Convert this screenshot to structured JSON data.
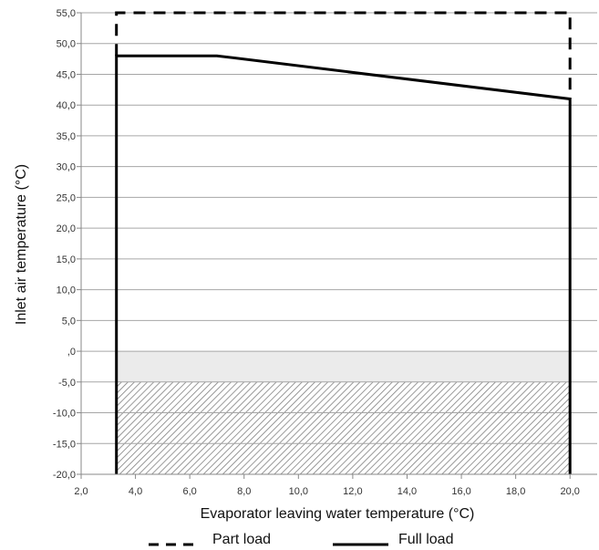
{
  "chart_data": {
    "type": "line",
    "title": "",
    "xlabel": "Evaporator leaving water temperature (°C)",
    "ylabel": "Inlet air temperature (°C)",
    "xlim": [
      2,
      21
    ],
    "ylim": [
      -20,
      55
    ],
    "grid": true,
    "x_ticks": [
      "2,0",
      "4,0",
      "6,0",
      "8,0",
      "10,0",
      "12,0",
      "14,0",
      "16,0",
      "18,0",
      "20,0"
    ],
    "y_ticks": [
      "-20,0",
      "-15,0",
      "-10,0",
      "-5,0",
      ",0",
      "5,0",
      "10,0",
      "15,0",
      "20,0",
      "25,0",
      "30,0",
      "35,0",
      "40,0",
      "45,0",
      "50,0",
      "55,0"
    ],
    "series": [
      {
        "name": "Part load",
        "style": "dashed",
        "x": [
          3.3,
          3.3,
          20,
          20
        ],
        "y": [
          48,
          55,
          55,
          41
        ]
      },
      {
        "name": "Full load",
        "style": "solid",
        "x": [
          3.3,
          3.3,
          7,
          20,
          20
        ],
        "y": [
          -20,
          48,
          48,
          41,
          -20
        ]
      }
    ],
    "regions": [
      {
        "name": "light-shaded",
        "x": [
          3.3,
          20
        ],
        "y": [
          -5,
          0
        ],
        "color": "#ebebeb"
      },
      {
        "name": "hatched",
        "x": [
          3.3,
          20
        ],
        "y": [
          -20,
          -5
        ]
      }
    ],
    "legend": "bottom-center",
    "colors": {
      "line": "#000000",
      "grid": "#a6a6a6",
      "shade": "#ebebeb",
      "hatch": "#7f7f7f"
    }
  }
}
